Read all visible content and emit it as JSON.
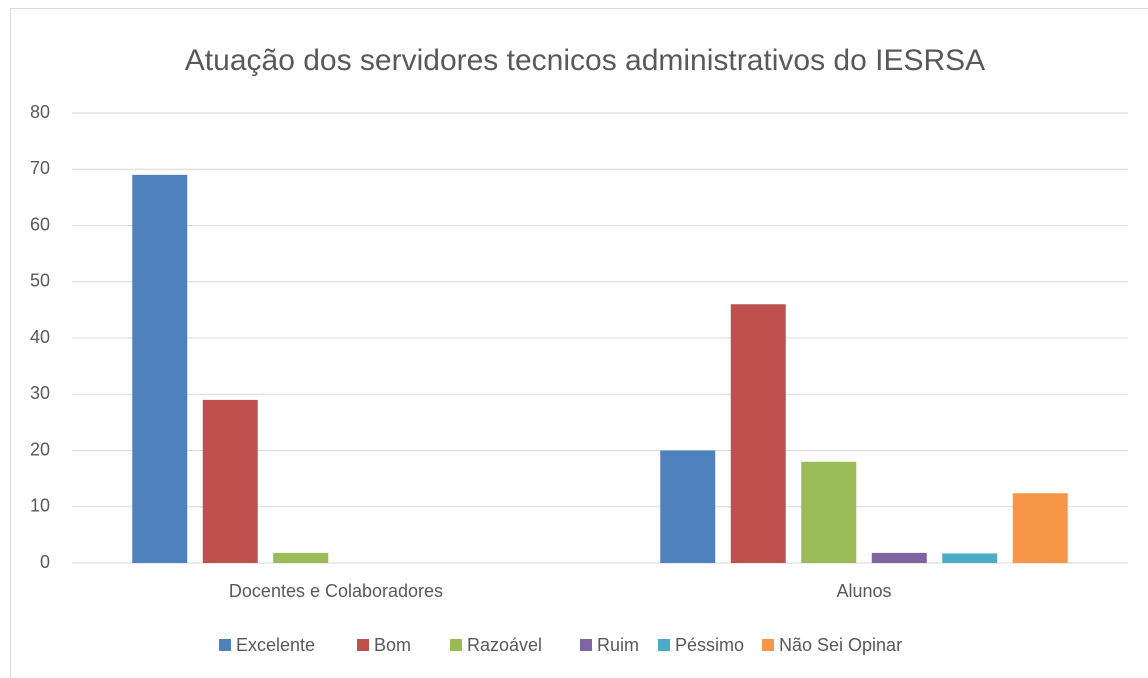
{
  "chart_data": {
    "type": "bar",
    "title": "Atuação dos servidores tecnicos administrativos do IESRSA",
    "categories": [
      "Docentes e Colaboradores",
      "Alunos"
    ],
    "series": [
      {
        "name": "Excelente",
        "color": "#4f81bd",
        "values": [
          69,
          20
        ]
      },
      {
        "name": "Bom",
        "color": "#c0504d",
        "values": [
          29,
          46
        ]
      },
      {
        "name": "Razoável",
        "color": "#9bbb59",
        "values": [
          1.8,
          18
        ]
      },
      {
        "name": "Ruim",
        "color": "#8064a2",
        "values": [
          0,
          1.8
        ]
      },
      {
        "name": "Péssimo",
        "color": "#4bacc6",
        "values": [
          0,
          1.7
        ]
      },
      {
        "name": "Não Sei Opinar",
        "color": "#f79646",
        "values": [
          0,
          12.4
        ]
      }
    ],
    "ylim": [
      0,
      80
    ],
    "yticks": [
      0,
      10,
      20,
      30,
      40,
      50,
      60,
      70,
      80
    ],
    "grid": true,
    "legend": "bottom"
  }
}
